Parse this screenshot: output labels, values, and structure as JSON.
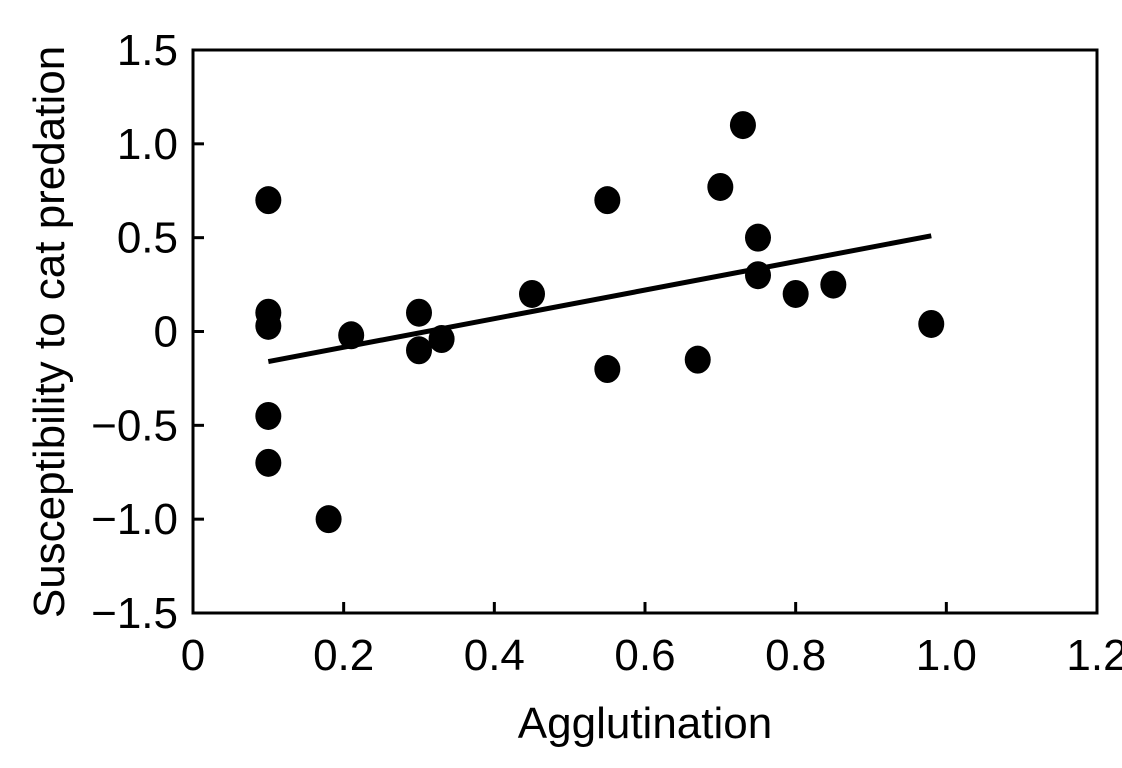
{
  "chart_data": {
    "type": "scatter",
    "xlabel": "Agglutination",
    "ylabel": "Susceptibility to cat predation",
    "xlim": [
      0,
      1.2
    ],
    "ylim": [
      -1.5,
      1.5
    ],
    "xticks": [
      0,
      0.2,
      0.4,
      0.6,
      0.8,
      1.0,
      1.2
    ],
    "xtick_labels": [
      "0",
      "0.2",
      "0.4",
      "0.6",
      "0.8",
      "1.0",
      "1.2"
    ],
    "yticks": [
      1.5,
      1.0,
      0.5,
      0,
      -0.5,
      -1.0,
      -1.5
    ],
    "ytick_labels": [
      "1.5",
      "1.0",
      "0.5",
      "0",
      "−0.5",
      "−1.0",
      "−1.5"
    ],
    "grid": false,
    "points": [
      {
        "x": 0.1,
        "y": 0.7
      },
      {
        "x": 0.1,
        "y": 0.1
      },
      {
        "x": 0.1,
        "y": 0.03
      },
      {
        "x": 0.1,
        "y": -0.45
      },
      {
        "x": 0.1,
        "y": -0.7
      },
      {
        "x": 0.18,
        "y": -1.0
      },
      {
        "x": 0.21,
        "y": -0.02
      },
      {
        "x": 0.3,
        "y": 0.1
      },
      {
        "x": 0.3,
        "y": -0.1
      },
      {
        "x": 0.33,
        "y": -0.04
      },
      {
        "x": 0.45,
        "y": 0.2
      },
      {
        "x": 0.55,
        "y": 0.7
      },
      {
        "x": 0.55,
        "y": -0.2
      },
      {
        "x": 0.67,
        "y": -0.15
      },
      {
        "x": 0.7,
        "y": 0.77
      },
      {
        "x": 0.73,
        "y": 1.1
      },
      {
        "x": 0.75,
        "y": 0.5
      },
      {
        "x": 0.75,
        "y": 0.3
      },
      {
        "x": 0.8,
        "y": 0.2
      },
      {
        "x": 0.85,
        "y": 0.25
      },
      {
        "x": 0.98,
        "y": 0.04
      }
    ],
    "trendline": {
      "x1": 0.1,
      "y1": -0.16,
      "x2": 0.98,
      "y2": 0.51
    },
    "marker_color": "#000000"
  }
}
